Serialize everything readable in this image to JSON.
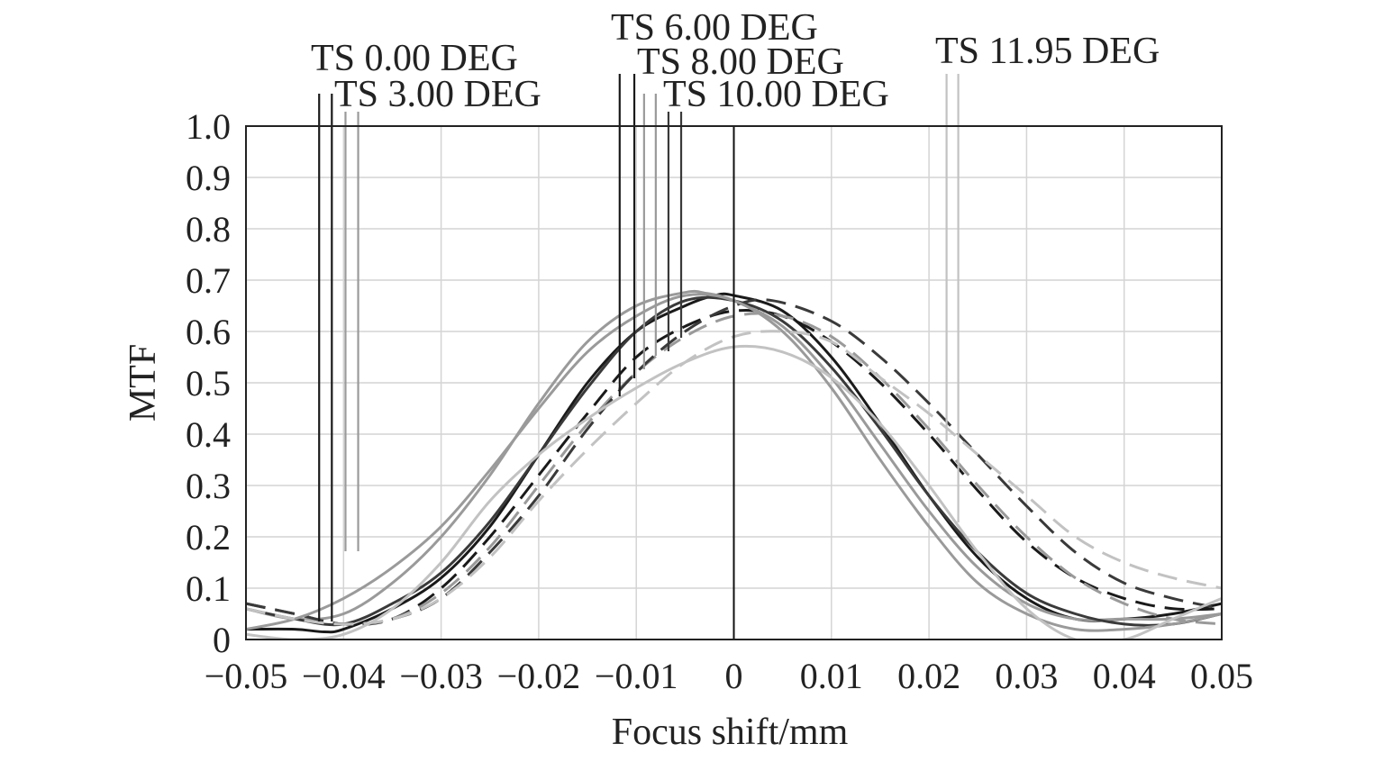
{
  "chart_data": {
    "type": "line",
    "title": "",
    "xlabel": "Focus shift/mm",
    "ylabel": "MTF",
    "xlim": [
      -0.05,
      0.05
    ],
    "ylim": [
      0,
      1.0
    ],
    "grid": true,
    "x_ticks": [
      -0.05,
      -0.04,
      -0.03,
      -0.02,
      -0.01,
      0,
      0.01,
      0.02,
      0.03,
      0.04,
      0.05
    ],
    "x_tick_labels": [
      "−0.05",
      "−0.04",
      "−0.03",
      "−0.02",
      "−0.01",
      "0",
      "0.01",
      "0.02",
      "0.03",
      "0.04",
      "0.05"
    ],
    "y_ticks": [
      0,
      0.1,
      0.2,
      0.3,
      0.4,
      0.5,
      0.6,
      0.7,
      0.8,
      0.9,
      1.0
    ],
    "y_tick_labels": [
      "0",
      "0.1",
      "0.2",
      "0.3",
      "0.4",
      "0.5",
      "0.6",
      "0.7",
      "0.8",
      "0.9",
      "1.0"
    ],
    "legend": [
      {
        "label": "TS 0.00 DEG",
        "color": "#1a1a1a",
        "line_x": [
          -0.0425,
          -0.0412
        ]
      },
      {
        "label": "TS 3.00 DEG",
        "color": "#9a9a9a",
        "line_x": [
          -0.0398,
          -0.0385
        ]
      },
      {
        "label": "TS 6.00 DEG",
        "color": "#1a1a1a",
        "line_x": [
          -0.0117,
          -0.0102
        ]
      },
      {
        "label": "TS 8.00 DEG",
        "color": "#9a9a9a",
        "line_x": [
          -0.0092,
          -0.008
        ]
      },
      {
        "label": "TS 10.00 DEG",
        "color": "#3a3a3a",
        "line_x": [
          -0.0067,
          -0.0054
        ]
      },
      {
        "label": "TS 11.95 DEG",
        "color": "#c2c2c2",
        "line_x": [
          0.0218,
          0.023
        ]
      }
    ],
    "focus_marker_x": 0,
    "series": [
      {
        "color": "#1a1a1a",
        "dash": false,
        "x": [
          -0.05,
          -0.045,
          -0.042,
          -0.04,
          -0.035,
          -0.03,
          -0.025,
          -0.02,
          -0.015,
          -0.01,
          -0.005,
          -0.002,
          0,
          0.005,
          0.01,
          0.015,
          0.02,
          0.025,
          0.03,
          0.035,
          0.04,
          0.045,
          0.05
        ],
        "y": [
          0.02,
          0.02,
          0.015,
          0.02,
          0.06,
          0.12,
          0.22,
          0.36,
          0.5,
          0.6,
          0.65,
          0.67,
          0.67,
          0.64,
          0.55,
          0.42,
          0.28,
          0.16,
          0.08,
          0.04,
          0.04,
          0.05,
          0.07
        ]
      },
      {
        "color": "#1a1a1a",
        "dash": true,
        "x": [
          -0.05,
          -0.045,
          -0.04,
          -0.035,
          -0.03,
          -0.025,
          -0.02,
          -0.015,
          -0.01,
          -0.005,
          0,
          0.005,
          0.01,
          0.015,
          0.02,
          0.025,
          0.03,
          0.035,
          0.04,
          0.045,
          0.05
        ],
        "y": [
          0.07,
          0.05,
          0.03,
          0.04,
          0.1,
          0.2,
          0.32,
          0.44,
          0.55,
          0.61,
          0.64,
          0.63,
          0.58,
          0.5,
          0.4,
          0.29,
          0.19,
          0.12,
          0.08,
          0.06,
          0.06
        ]
      },
      {
        "color": "#9a9a9a",
        "dash": false,
        "x": [
          -0.05,
          -0.045,
          -0.04,
          -0.035,
          -0.03,
          -0.025,
          -0.02,
          -0.015,
          -0.01,
          -0.005,
          -0.003,
          0,
          0.005,
          0.01,
          0.015,
          0.02,
          0.025,
          0.03,
          0.035,
          0.04,
          0.045,
          0.05
        ],
        "y": [
          0.06,
          0.04,
          0.05,
          0.11,
          0.2,
          0.32,
          0.46,
          0.58,
          0.65,
          0.676,
          0.675,
          0.66,
          0.61,
          0.51,
          0.38,
          0.25,
          0.14,
          0.07,
          0.04,
          0.04,
          0.04,
          0.05
        ]
      },
      {
        "color": "#9a9a9a",
        "dash": true,
        "x": [
          -0.05,
          -0.045,
          -0.04,
          -0.035,
          -0.03,
          -0.025,
          -0.02,
          -0.015,
          -0.01,
          -0.005,
          0,
          0.005,
          0.01,
          0.015,
          0.02,
          0.025,
          0.03,
          0.035,
          0.04,
          0.045,
          0.05
        ],
        "y": [
          0.07,
          0.05,
          0.03,
          0.04,
          0.09,
          0.18,
          0.3,
          0.42,
          0.52,
          0.59,
          0.63,
          0.63,
          0.59,
          0.51,
          0.41,
          0.3,
          0.2,
          0.12,
          0.07,
          0.04,
          0.03
        ]
      },
      {
        "color": "#3a3a3a",
        "dash": false,
        "x": [
          -0.05,
          -0.045,
          -0.04,
          -0.035,
          -0.03,
          -0.025,
          -0.02,
          -0.015,
          -0.01,
          -0.005,
          0,
          0.005,
          0.01,
          0.015,
          0.02,
          0.025,
          0.03,
          0.035,
          0.04,
          0.045,
          0.05
        ],
        "y": [
          0.06,
          0.04,
          0.03,
          0.07,
          0.13,
          0.23,
          0.36,
          0.49,
          0.6,
          0.66,
          0.66,
          0.62,
          0.53,
          0.41,
          0.28,
          0.17,
          0.09,
          0.05,
          0.03,
          0.03,
          0.05
        ]
      },
      {
        "color": "#3a3a3a",
        "dash": true,
        "x": [
          -0.05,
          -0.045,
          -0.04,
          -0.035,
          -0.03,
          -0.025,
          -0.02,
          -0.015,
          -0.01,
          -0.005,
          0,
          0.004,
          0.01,
          0.015,
          0.02,
          0.025,
          0.03,
          0.035,
          0.04,
          0.045,
          0.05
        ],
        "y": [
          0.07,
          0.05,
          0.03,
          0.04,
          0.08,
          0.17,
          0.28,
          0.41,
          0.52,
          0.6,
          0.65,
          0.66,
          0.62,
          0.55,
          0.46,
          0.36,
          0.26,
          0.17,
          0.11,
          0.08,
          0.06
        ]
      },
      {
        "color": "#9a9a9a",
        "dash": false,
        "x": [
          -0.05,
          -0.045,
          -0.04,
          -0.035,
          -0.03,
          -0.025,
          -0.02,
          -0.015,
          -0.01,
          -0.005,
          0,
          0.005,
          0.01,
          0.015,
          0.02,
          0.025,
          0.03,
          0.035,
          0.04,
          0.045,
          0.05
        ],
        "y": [
          0.02,
          0.04,
          0.08,
          0.14,
          0.22,
          0.33,
          0.45,
          0.56,
          0.63,
          0.67,
          0.66,
          0.6,
          0.49,
          0.35,
          0.22,
          0.11,
          0.05,
          0.02,
          0.02,
          0.03,
          0.05
        ]
      },
      {
        "color": "#c2c2c2",
        "dash": false,
        "x": [
          -0.05,
          -0.045,
          -0.04,
          -0.035,
          -0.03,
          -0.025,
          -0.02,
          -0.015,
          -0.01,
          -0.005,
          0,
          0.005,
          0.01,
          0.015,
          0.02,
          0.025,
          0.03,
          0.035,
          0.04,
          0.045,
          0.05
        ],
        "y": [
          0.01,
          0.0,
          0.01,
          0.06,
          0.15,
          0.27,
          0.36,
          0.43,
          0.49,
          0.54,
          0.57,
          0.56,
          0.51,
          0.42,
          0.3,
          0.17,
          0.06,
          0.0,
          0.0,
          0.04,
          0.08
        ]
      },
      {
        "color": "#c2c2c2",
        "dash": true,
        "x": [
          -0.05,
          -0.045,
          -0.04,
          -0.035,
          -0.03,
          -0.025,
          -0.02,
          -0.015,
          -0.01,
          -0.005,
          0,
          0.005,
          0.01,
          0.015,
          0.02,
          0.025,
          0.03,
          0.035,
          0.04,
          0.045,
          0.05
        ],
        "y": [
          0.06,
          0.04,
          0.03,
          0.04,
          0.08,
          0.16,
          0.27,
          0.37,
          0.46,
          0.54,
          0.59,
          0.6,
          0.58,
          0.51,
          0.44,
          0.36,
          0.28,
          0.2,
          0.15,
          0.12,
          0.1
        ]
      }
    ]
  }
}
